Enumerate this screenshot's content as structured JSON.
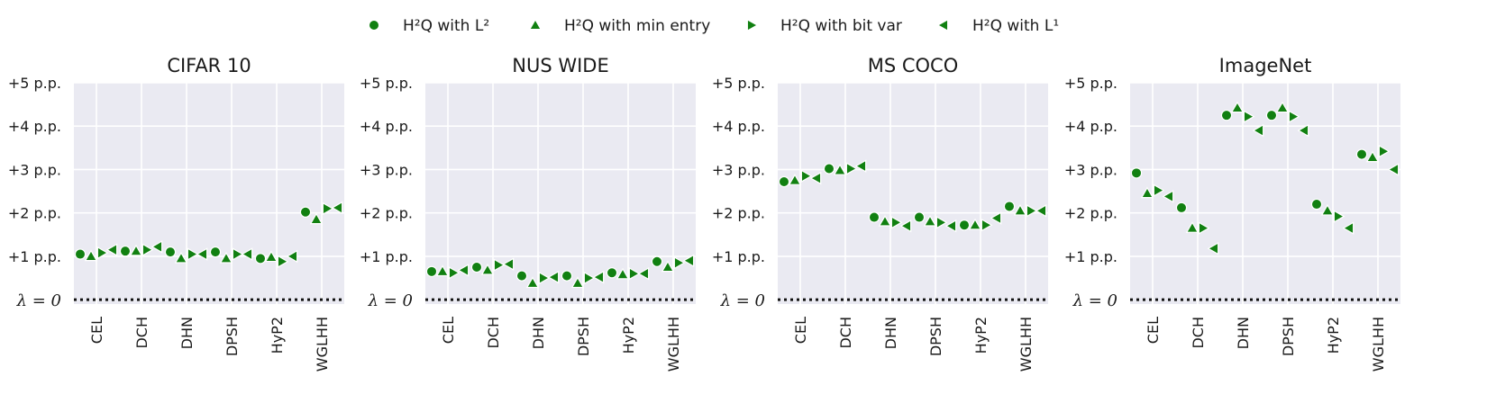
{
  "colors": {
    "marker": "#118011",
    "marker_edge": "#ffffff",
    "panel_background": "#eaeaf2",
    "grid": "#ffffff"
  },
  "legend": [
    {
      "label": "H²Q with L²",
      "marker": "circle"
    },
    {
      "label": "H²Q with min entry",
      "marker": "triangle-up"
    },
    {
      "label": "H²Q with bit var",
      "marker": "triangle-right"
    },
    {
      "label": "H²Q with L¹",
      "marker": "triangle-left"
    }
  ],
  "chart_data": [
    {
      "type": "scatter",
      "title": "CIFAR 10",
      "categories": [
        "CEL",
        "DCH",
        "DHN",
        "DPSH",
        "HyP2",
        "WGLHH"
      ],
      "ylim": [
        -0.1,
        5.0
      ],
      "yticks": [
        5,
        4,
        3,
        2,
        1
      ],
      "ytick_labels": [
        "+5 p.p.",
        "+4 p.p.",
        "+3 p.p.",
        "+2 p.p.",
        "+1 p.p."
      ],
      "baseline_label": "λ = 0",
      "grid": true,
      "series": [
        {
          "marker": "circle",
          "values": [
            1.05,
            1.12,
            1.1,
            1.1,
            0.95,
            2.02
          ]
        },
        {
          "marker": "triangle-up",
          "values": [
            1.0,
            1.12,
            0.95,
            0.95,
            0.98,
            1.85
          ]
        },
        {
          "marker": "triangle-right",
          "values": [
            1.08,
            1.15,
            1.05,
            1.05,
            0.88,
            2.1
          ]
        },
        {
          "marker": "triangle-left",
          "values": [
            1.15,
            1.22,
            1.05,
            1.05,
            1.0,
            2.12
          ]
        }
      ]
    },
    {
      "type": "scatter",
      "title": "NUS WIDE",
      "categories": [
        "CEL",
        "DCH",
        "DHN",
        "DPSH",
        "HyP2",
        "WGLHH"
      ],
      "ylim": [
        -0.1,
        5.0
      ],
      "yticks": [
        5,
        4,
        3,
        2,
        1
      ],
      "ytick_labels": [
        "+5 p.p.",
        "+4 p.p.",
        "+3 p.p.",
        "+2 p.p.",
        "+1 p.p."
      ],
      "baseline_label": "λ = 0",
      "grid": true,
      "series": [
        {
          "marker": "circle",
          "values": [
            0.65,
            0.75,
            0.55,
            0.55,
            0.62,
            0.88
          ]
        },
        {
          "marker": "triangle-up",
          "values": [
            0.65,
            0.68,
            0.38,
            0.38,
            0.58,
            0.75
          ]
        },
        {
          "marker": "triangle-right",
          "values": [
            0.62,
            0.8,
            0.5,
            0.5,
            0.6,
            0.85
          ]
        },
        {
          "marker": "triangle-left",
          "values": [
            0.68,
            0.82,
            0.52,
            0.52,
            0.6,
            0.9
          ]
        }
      ]
    },
    {
      "type": "scatter",
      "title": "MS COCO",
      "categories": [
        "CEL",
        "DCH",
        "DHN",
        "DPSH",
        "HyP2",
        "WGLHH"
      ],
      "ylim": [
        -0.1,
        5.0
      ],
      "yticks": [
        5,
        4,
        3,
        2,
        1
      ],
      "ytick_labels": [
        "+5 p.p.",
        "+4 p.p.",
        "+3 p.p.",
        "+2 p.p.",
        "+1 p.p."
      ],
      "baseline_label": "λ = 0",
      "grid": true,
      "series": [
        {
          "marker": "circle",
          "values": [
            2.72,
            3.02,
            1.9,
            1.9,
            1.72,
            2.15
          ]
        },
        {
          "marker": "triangle-up",
          "values": [
            2.75,
            2.98,
            1.8,
            1.8,
            1.72,
            2.05
          ]
        },
        {
          "marker": "triangle-right",
          "values": [
            2.85,
            3.02,
            1.78,
            1.78,
            1.72,
            2.05
          ]
        },
        {
          "marker": "triangle-left",
          "values": [
            2.8,
            3.08,
            1.7,
            1.7,
            1.88,
            2.05
          ]
        }
      ]
    },
    {
      "type": "scatter",
      "title": "ImageNet",
      "categories": [
        "CEL",
        "DCH",
        "DHN",
        "DPSH",
        "HyP2",
        "WGLHH"
      ],
      "ylim": [
        -0.1,
        5.0
      ],
      "yticks": [
        5,
        4,
        3,
        2,
        1
      ],
      "ytick_labels": [
        "+5 p.p.",
        "+4 p.p.",
        "+3 p.p.",
        "+2 p.p.",
        "+1 p.p."
      ],
      "baseline_label": "λ = 0",
      "grid": true,
      "series": [
        {
          "marker": "circle",
          "values": [
            2.92,
            2.12,
            4.25,
            4.25,
            2.2,
            3.35
          ]
        },
        {
          "marker": "triangle-up",
          "values": [
            2.45,
            1.65,
            4.42,
            4.42,
            2.05,
            3.28
          ]
        },
        {
          "marker": "triangle-right",
          "values": [
            2.52,
            1.65,
            4.22,
            4.22,
            1.92,
            3.42
          ]
        },
        {
          "marker": "triangle-left",
          "values": [
            2.38,
            1.18,
            3.9,
            3.9,
            1.65,
            3.0
          ]
        }
      ]
    }
  ]
}
